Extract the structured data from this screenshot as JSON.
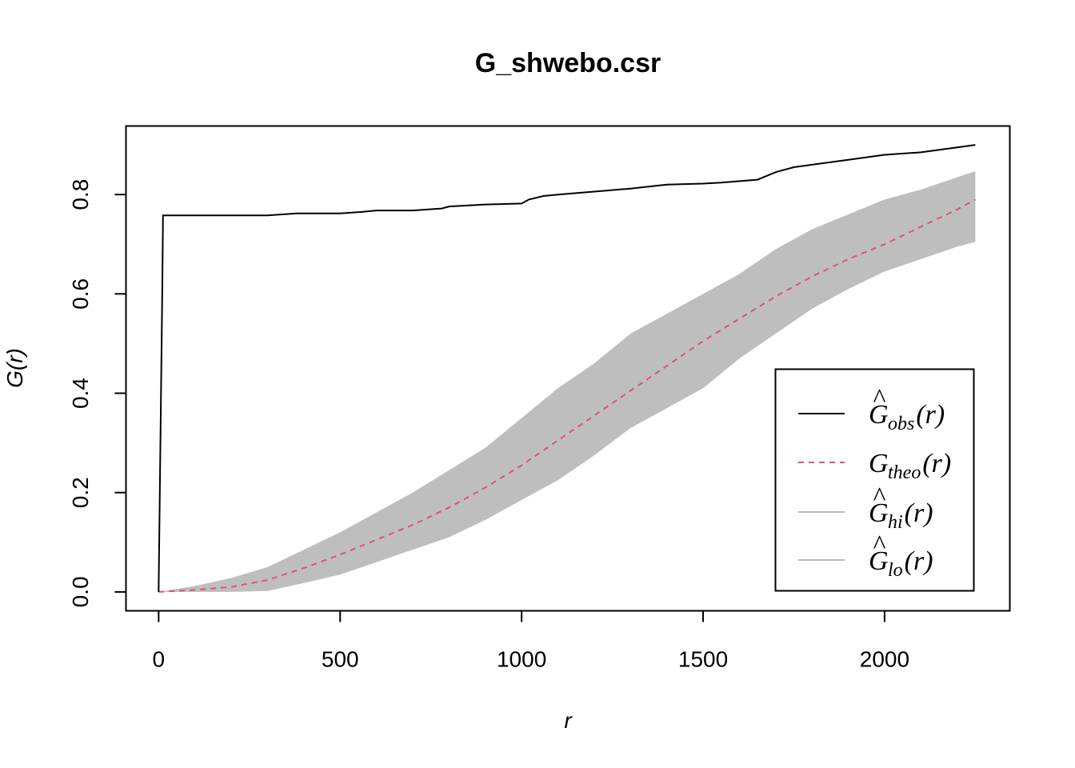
{
  "chart_data": {
    "type": "line",
    "title": "G_shwebo.csr",
    "xlabel": "r",
    "ylabel": "G(r)",
    "xlim": [
      -90,
      2345
    ],
    "ylim": [
      -0.038,
      0.938
    ],
    "x_ticks": [
      0,
      500,
      1000,
      1500,
      2000
    ],
    "x_tick_labels": [
      "0",
      "500",
      "1000",
      "1500",
      "2000"
    ],
    "y_ticks": [
      0.0,
      0.2,
      0.4,
      0.6,
      0.8
    ],
    "y_tick_labels": [
      "0.0",
      "0.2",
      "0.4",
      "0.6",
      "0.8"
    ],
    "grid": false,
    "legend_position": "bottom-right",
    "series": [
      {
        "name": "obs",
        "legend_symbol": "G",
        "legend_hat": "^",
        "legend_subscript": "obs",
        "legend_arg": "(r)",
        "color": "#000000",
        "style": "solid",
        "x": [
          0,
          10,
          12,
          100,
          200,
          300,
          380,
          420,
          500,
          560,
          600,
          700,
          780,
          800,
          900,
          1000,
          1020,
          1060,
          1100,
          1200,
          1300,
          1400,
          1500,
          1550,
          1650,
          1700,
          1750,
          1800,
          1900,
          2000,
          2100,
          2200,
          2250
        ],
        "y": [
          0.0,
          0.61,
          0.758,
          0.758,
          0.758,
          0.758,
          0.762,
          0.762,
          0.762,
          0.765,
          0.768,
          0.768,
          0.772,
          0.776,
          0.78,
          0.782,
          0.79,
          0.797,
          0.8,
          0.806,
          0.812,
          0.82,
          0.822,
          0.824,
          0.83,
          0.845,
          0.855,
          0.86,
          0.87,
          0.88,
          0.885,
          0.895,
          0.9
        ]
      },
      {
        "name": "theo",
        "legend_symbol": "G",
        "legend_hat": "",
        "legend_subscript": "theo",
        "legend_arg": "(r)",
        "color": "#df536b",
        "style": "dashed",
        "x": [
          0,
          100,
          200,
          300,
          400,
          500,
          600,
          700,
          800,
          900,
          1000,
          1100,
          1200,
          1300,
          1400,
          1500,
          1600,
          1700,
          1800,
          1900,
          2000,
          2100,
          2200,
          2250
        ],
        "y": [
          0.0,
          0.004,
          0.01,
          0.024,
          0.048,
          0.075,
          0.105,
          0.135,
          0.17,
          0.21,
          0.255,
          0.305,
          0.355,
          0.405,
          0.455,
          0.505,
          0.55,
          0.595,
          0.635,
          0.67,
          0.7,
          0.735,
          0.77,
          0.79
        ]
      },
      {
        "name": "hi",
        "legend_symbol": "G",
        "legend_hat": "^",
        "legend_subscript": "hi",
        "legend_arg": "(r)",
        "color": "#bebebe",
        "style": "solid",
        "x": [
          0,
          100,
          200,
          300,
          400,
          500,
          600,
          700,
          800,
          900,
          1000,
          1100,
          1200,
          1300,
          1400,
          1500,
          1600,
          1700,
          1800,
          1900,
          2000,
          2100,
          2200,
          2250
        ],
        "y": [
          0.0,
          0.012,
          0.028,
          0.05,
          0.085,
          0.12,
          0.16,
          0.2,
          0.245,
          0.29,
          0.35,
          0.41,
          0.46,
          0.52,
          0.56,
          0.6,
          0.64,
          0.69,
          0.73,
          0.76,
          0.79,
          0.81,
          0.835,
          0.847
        ]
      },
      {
        "name": "lo",
        "legend_symbol": "G",
        "legend_hat": "^",
        "legend_subscript": "lo",
        "legend_arg": "(r)",
        "color": "#bebebe",
        "style": "solid",
        "x": [
          0,
          100,
          200,
          300,
          400,
          500,
          600,
          700,
          800,
          900,
          1000,
          1100,
          1200,
          1300,
          1400,
          1500,
          1600,
          1700,
          1800,
          1900,
          2000,
          2100,
          2200,
          2250
        ],
        "y": [
          0.0,
          0.0,
          0.0,
          0.002,
          0.018,
          0.035,
          0.06,
          0.085,
          0.11,
          0.145,
          0.185,
          0.225,
          0.275,
          0.33,
          0.37,
          0.41,
          0.47,
          0.52,
          0.57,
          0.61,
          0.645,
          0.67,
          0.695,
          0.705
        ]
      }
    ]
  }
}
